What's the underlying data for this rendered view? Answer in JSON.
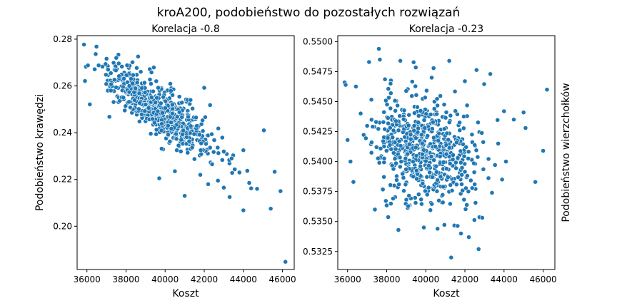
{
  "figure": {
    "suptitle": "kroA200, podobieństwo do pozostałych rozwiązań"
  },
  "chart_data": [
    {
      "type": "scatter",
      "title": "Korelacja -0.8",
      "xlabel": "Koszt",
      "ylabel": "Podobieństwo krawędzi",
      "ylabel_side": "left",
      "xlim": [
        35500,
        46600
      ],
      "ylim": [
        0.1815,
        0.2815
      ],
      "xticks": [
        36000,
        38000,
        40000,
        42000,
        44000,
        46000
      ],
      "xtick_labels": [
        "36000",
        "38000",
        "40000",
        "42000",
        "44000",
        "46000"
      ],
      "yticks": [
        0.2,
        0.22,
        0.24,
        0.26,
        0.28
      ],
      "ytick_labels": [
        "0.20",
        "0.22",
        "0.24",
        "0.26",
        "0.28"
      ],
      "color": "#1f77b4",
      "outliers": [
        [
          35850,
          0.2777
        ],
        [
          35900,
          0.2621
        ],
        [
          35950,
          0.2682
        ],
        [
          36050,
          0.2688
        ],
        [
          36150,
          0.2521
        ],
        [
          36400,
          0.2671
        ],
        [
          36600,
          0.2688
        ],
        [
          37150,
          0.2468
        ],
        [
          37500,
          0.272
        ],
        [
          38550,
          0.2677
        ],
        [
          39300,
          0.2658
        ],
        [
          41300,
          0.254
        ],
        [
          42000,
          0.2592
        ],
        [
          42300,
          0.2518
        ],
        [
          43000,
          0.232
        ],
        [
          43400,
          0.229
        ],
        [
          43800,
          0.223
        ],
        [
          44000,
          0.2068
        ],
        [
          44200,
          0.2237
        ],
        [
          44400,
          0.2162
        ],
        [
          44700,
          0.216
        ],
        [
          45050,
          0.241
        ],
        [
          45400,
          0.2075
        ],
        [
          45600,
          0.2233
        ],
        [
          45900,
          0.215
        ],
        [
          46150,
          0.1848
        ],
        [
          41000,
          0.213
        ],
        [
          43000,
          0.2165
        ],
        [
          44000,
          0.2325
        ],
        [
          42700,
          0.2195
        ],
        [
          42200,
          0.218
        ],
        [
          39700,
          0.2205
        ],
        [
          40500,
          0.2235
        ],
        [
          41800,
          0.222
        ],
        [
          43300,
          0.2125
        ],
        [
          42400,
          0.2265
        ],
        [
          40800,
          0.232
        ],
        [
          44300,
          0.2185
        ]
      ],
      "cluster": {
        "count": 640,
        "center_x": 39700,
        "sd_x": 1250,
        "center_y": 0.25,
        "sd_y": 0.0085,
        "correlation": -0.8,
        "seed": 7
      }
    },
    {
      "type": "scatter",
      "title": "Korelacja -0.23",
      "xlabel": "Koszt",
      "ylabel": "Podobieństwo wierzchołków",
      "ylabel_side": "right",
      "xlim": [
        35500,
        46600
      ],
      "ylim": [
        0.531,
        0.5505
      ],
      "xticks": [
        36000,
        38000,
        40000,
        42000,
        44000,
        46000
      ],
      "xtick_labels": [
        "36000",
        "38000",
        "40000",
        "42000",
        "44000",
        "46000"
      ],
      "yticks": [
        0.5325,
        0.535,
        0.5375,
        0.54,
        0.5425,
        0.545,
        0.5475,
        0.55
      ],
      "ytick_labels": [
        "0.5325",
        "0.5350",
        "0.5375",
        "0.5400",
        "0.5425",
        "0.5450",
        "0.5475",
        "0.5500"
      ],
      "color": "#1f77b4",
      "outliers": [
        [
          35850,
          0.5466
        ],
        [
          35900,
          0.5464
        ],
        [
          36000,
          0.5418
        ],
        [
          36150,
          0.54
        ],
        [
          36300,
          0.5383
        ],
        [
          37100,
          0.5483
        ],
        [
          37600,
          0.5494
        ],
        [
          37650,
          0.5485
        ],
        [
          38600,
          0.5343
        ],
        [
          38700,
          0.5484
        ],
        [
          39900,
          0.5345
        ],
        [
          40600,
          0.5344
        ],
        [
          41200,
          0.5484
        ],
        [
          41300,
          0.532
        ],
        [
          42000,
          0.5467
        ],
        [
          42200,
          0.5337
        ],
        [
          42700,
          0.5327
        ],
        [
          43300,
          0.5473
        ],
        [
          44000,
          0.5442
        ],
        [
          44500,
          0.5435
        ],
        [
          45000,
          0.5441
        ],
        [
          45100,
          0.5428
        ],
        [
          45600,
          0.5383
        ],
        [
          46000,
          0.5409
        ],
        [
          46200,
          0.546
        ],
        [
          44100,
          0.54
        ],
        [
          43700,
          0.5415
        ],
        [
          43900,
          0.5385
        ],
        [
          41800,
          0.534
        ],
        [
          37400,
          0.536
        ],
        [
          40300,
          0.547
        ],
        [
          38200,
          0.5465
        ]
      ],
      "cluster": {
        "count": 640,
        "center_x": 39900,
        "sd_x": 1300,
        "center_y": 0.541,
        "sd_y": 0.0023,
        "correlation": -0.23,
        "seed": 11
      }
    }
  ]
}
